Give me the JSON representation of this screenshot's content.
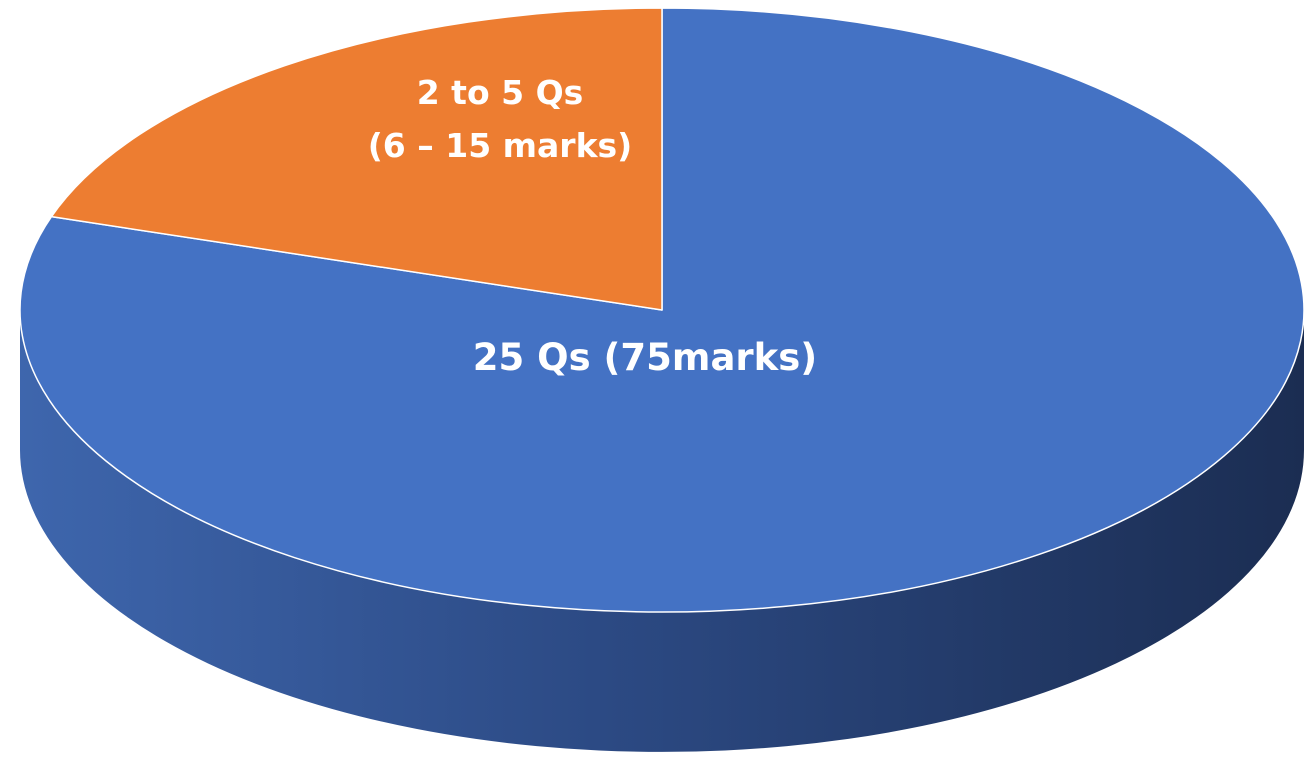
{
  "chart_data": {
    "type": "pie",
    "style": "3d",
    "slices": [
      {
        "label_lines": [
          "25 Qs (75marks)"
        ],
        "value": 80,
        "color": "#4472C4"
      },
      {
        "label_lines": [
          "2 to 5 Qs",
          "(6 – 15 marks)"
        ],
        "value": 20,
        "color": "#ED7D31"
      }
    ]
  }
}
